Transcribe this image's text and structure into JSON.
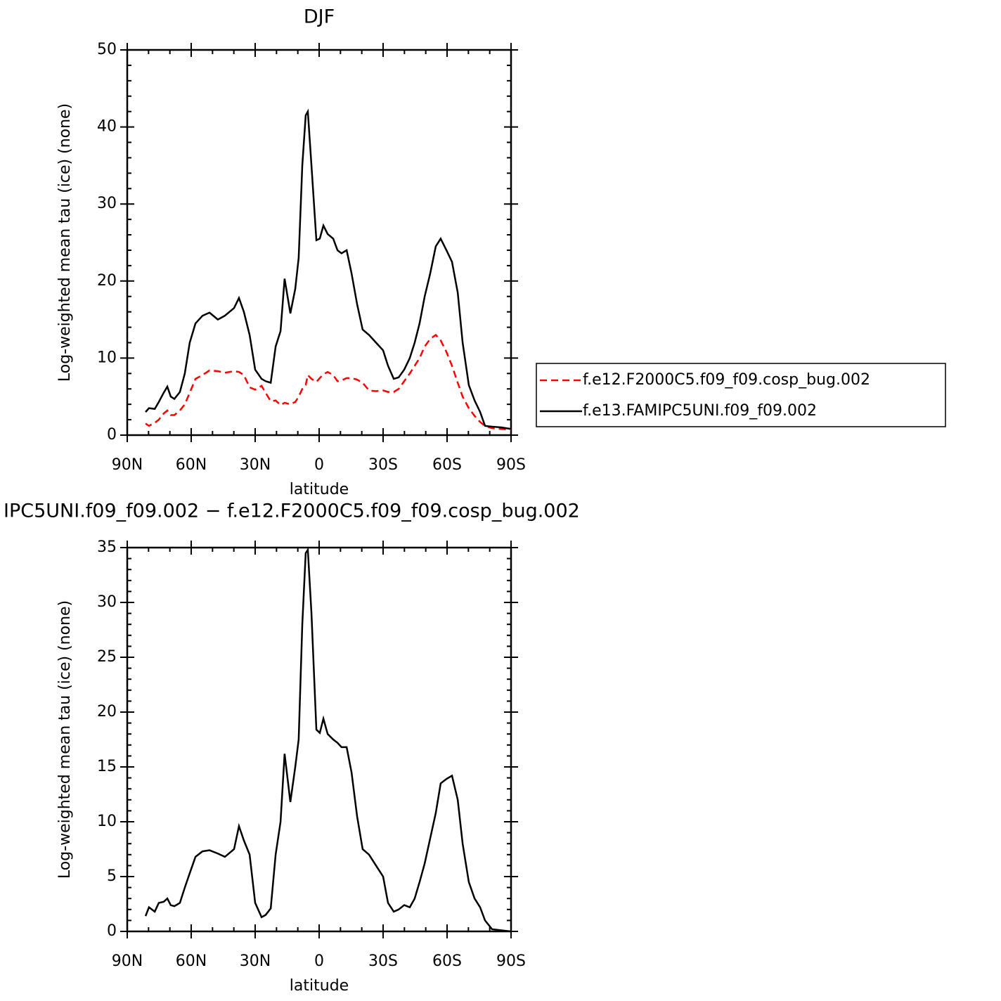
{
  "chart_data": [
    {
      "type": "line",
      "title": "DJF",
      "xlabel": "latitude",
      "ylabel": "Log-weighted mean tau (ice) (none)",
      "x": [
        81.4,
        79.8,
        77.1,
        75.2,
        72.9,
        71.2,
        69.6,
        67.9,
        65.3,
        63.0,
        60.7,
        58.0,
        54.7,
        51.4,
        47.5,
        44.2,
        39.9,
        37.6,
        35.3,
        32.6,
        30.0,
        27.0,
        25.1,
        22.7,
        20.4,
        18.1,
        16.2,
        13.5,
        11.2,
        9.6,
        7.9,
        6.3,
        5.3,
        3.6,
        1.3,
        -0.3,
        -2.0,
        -4.0,
        -6.6,
        -8.6,
        -10.5,
        -12.9,
        -15.2,
        -17.8,
        -20.4,
        -23.4,
        -26.7,
        -30.0,
        -32.3,
        -35.0,
        -37.3,
        -39.9,
        -42.5,
        -44.8,
        -47.1,
        -49.5,
        -52.1,
        -54.7,
        -57.0,
        -59.7,
        -62.3,
        -65.0,
        -67.3,
        -70.2,
        -72.9,
        -75.5,
        -77.8,
        -81.1,
        -85.4,
        -90.0
      ],
      "series": [
        {
          "name": "f.e12.F2000C5.f09_f09.cosp_bug.002",
          "color": "#ff0000",
          "line_style": "dashed",
          "values": [
            1.5,
            1.2,
            1.6,
            2.0,
            2.8,
            3.2,
            2.6,
            2.6,
            3.2,
            4.0,
            5.5,
            7.3,
            7.8,
            8.4,
            8.3,
            8.1,
            8.3,
            8.2,
            7.8,
            6.2,
            5.9,
            6.4,
            5.5,
            4.4,
            4.5,
            3.9,
            4.2,
            4.0,
            4.3,
            5.0,
            6.0,
            6.5,
            7.8,
            7.3,
            6.9,
            7.4,
            7.9,
            8.2,
            7.8,
            7.0,
            7.1,
            7.4,
            7.4,
            7.2,
            6.8,
            5.8,
            5.7,
            5.8,
            5.6,
            5.6,
            6.0,
            7.0,
            8.0,
            9.0,
            10.0,
            11.5,
            12.5,
            13.0,
            12.3,
            10.8,
            9.0,
            6.8,
            5.0,
            3.5,
            2.5,
            1.7,
            1.2,
            0.9,
            0.8,
            0.7
          ]
        },
        {
          "name": "f.e13.FAMIPC5UNI.f09_f09.002",
          "color": "#000000",
          "line_style": "solid",
          "values": [
            3.0,
            3.5,
            3.4,
            4.3,
            5.5,
            6.3,
            5.0,
            4.7,
            5.6,
            8.0,
            12.0,
            14.5,
            15.5,
            15.9,
            15.0,
            15.5,
            16.5,
            17.8,
            16.0,
            13.0,
            8.5,
            7.3,
            7.0,
            6.8,
            11.5,
            13.5,
            20.3,
            15.8,
            19.0,
            23.0,
            35.0,
            41.5,
            42.0,
            35.0,
            25.3,
            25.5,
            27.2,
            26.1,
            25.5,
            24.0,
            23.6,
            24.0,
            21.0,
            17.0,
            13.7,
            13.0,
            12.0,
            11.0,
            9.0,
            7.3,
            7.5,
            8.5,
            10.0,
            12.0,
            14.5,
            18.0,
            21.0,
            24.5,
            25.5,
            24.0,
            22.5,
            18.5,
            12.0,
            6.5,
            4.5,
            3.0,
            1.2,
            1.1,
            1.0,
            0.8
          ]
        }
      ],
      "xlim": [
        90,
        -90
      ],
      "xticks": [
        {
          "value": 90,
          "label": "90N"
        },
        {
          "value": 60,
          "label": "60N"
        },
        {
          "value": 30,
          "label": "30N"
        },
        0,
        {
          "value": -30,
          "label": "30S"
        },
        {
          "value": -60,
          "label": "60S"
        },
        {
          "value": -90,
          "label": "90S"
        }
      ],
      "xminorticks": [
        80,
        70,
        50,
        40,
        20,
        10,
        -10,
        -20,
        -40,
        -50,
        -70,
        -80
      ],
      "ylim": [
        0,
        50
      ],
      "yticks": [
        0,
        10,
        20,
        30,
        40,
        50
      ],
      "yminorticks": [
        2,
        4,
        6,
        8,
        12,
        14,
        16,
        18,
        22,
        24,
        26,
        28,
        32,
        34,
        36,
        38,
        42,
        44,
        46,
        48
      ],
      "legend": "outside-right"
    },
    {
      "type": "line",
      "title": "IPC5UNI.f09_f09.002 − f.e12.F2000C5.f09_f09.cosp_bug.002",
      "xlabel": "latitude",
      "ylabel": "Log-weighted mean tau (ice) (none)",
      "x": [
        81.4,
        79.8,
        77.1,
        75.2,
        72.9,
        71.2,
        69.6,
        67.9,
        65.3,
        63.0,
        60.7,
        58.0,
        54.7,
        51.4,
        47.5,
        44.2,
        39.9,
        37.6,
        35.3,
        32.6,
        30.0,
        27.0,
        25.1,
        22.7,
        20.4,
        18.1,
        16.2,
        13.5,
        11.2,
        9.6,
        7.9,
        6.3,
        5.3,
        3.6,
        1.3,
        -0.3,
        -2.0,
        -4.0,
        -6.6,
        -8.6,
        -10.5,
        -12.9,
        -15.2,
        -17.8,
        -20.4,
        -23.4,
        -26.7,
        -30.0,
        -32.3,
        -35.0,
        -37.3,
        -39.9,
        -42.5,
        -44.8,
        -47.1,
        -49.5,
        -52.1,
        -54.7,
        -57.0,
        -59.7,
        -62.3,
        -65.0,
        -67.3,
        -70.2,
        -72.9,
        -75.5,
        -77.8,
        -81.1,
        -85.4,
        -90.0
      ],
      "series": [
        {
          "color": "#000000",
          "line_style": "solid",
          "values": [
            1.4,
            2.2,
            1.8,
            2.6,
            2.7,
            3.0,
            2.4,
            2.3,
            2.6,
            4.0,
            5.3,
            6.8,
            7.3,
            7.4,
            7.1,
            6.8,
            7.5,
            9.6,
            8.3,
            7.0,
            2.6,
            1.3,
            1.5,
            2.1,
            7.0,
            10.0,
            16.2,
            11.8,
            15.0,
            17.5,
            28.0,
            34.5,
            34.8,
            29.0,
            18.4,
            18.1,
            19.4,
            18.0,
            17.5,
            17.2,
            16.8,
            16.8,
            14.5,
            10.5,
            7.5,
            7.0,
            6.0,
            5.0,
            2.6,
            1.8,
            2.0,
            2.4,
            2.2,
            3.0,
            4.5,
            6.2,
            8.5,
            10.8,
            13.5,
            13.9,
            14.2,
            12.0,
            8.0,
            4.5,
            3.0,
            2.2,
            1.0,
            0.2,
            0.1,
            0.0
          ]
        }
      ],
      "xlim": [
        90,
        -90
      ],
      "xticks": [
        {
          "value": 90,
          "label": "90N"
        },
        {
          "value": 60,
          "label": "60N"
        },
        {
          "value": 30,
          "label": "30N"
        },
        0,
        {
          "value": -30,
          "label": "30S"
        },
        {
          "value": -60,
          "label": "60S"
        },
        {
          "value": -90,
          "label": "90S"
        }
      ],
      "xminorticks": [
        80,
        70,
        50,
        40,
        20,
        10,
        -10,
        -20,
        -40,
        -50,
        -70,
        -80
      ],
      "ylim": [
        0,
        35
      ],
      "yticks": [
        0,
        5,
        10,
        15,
        20,
        25,
        30,
        35
      ],
      "yminorticks": [
        1,
        2,
        3,
        4,
        6,
        7,
        8,
        9,
        11,
        12,
        13,
        14,
        16,
        17,
        18,
        19,
        21,
        22,
        23,
        24,
        26,
        27,
        28,
        29,
        31,
        32,
        33,
        34
      ]
    }
  ]
}
